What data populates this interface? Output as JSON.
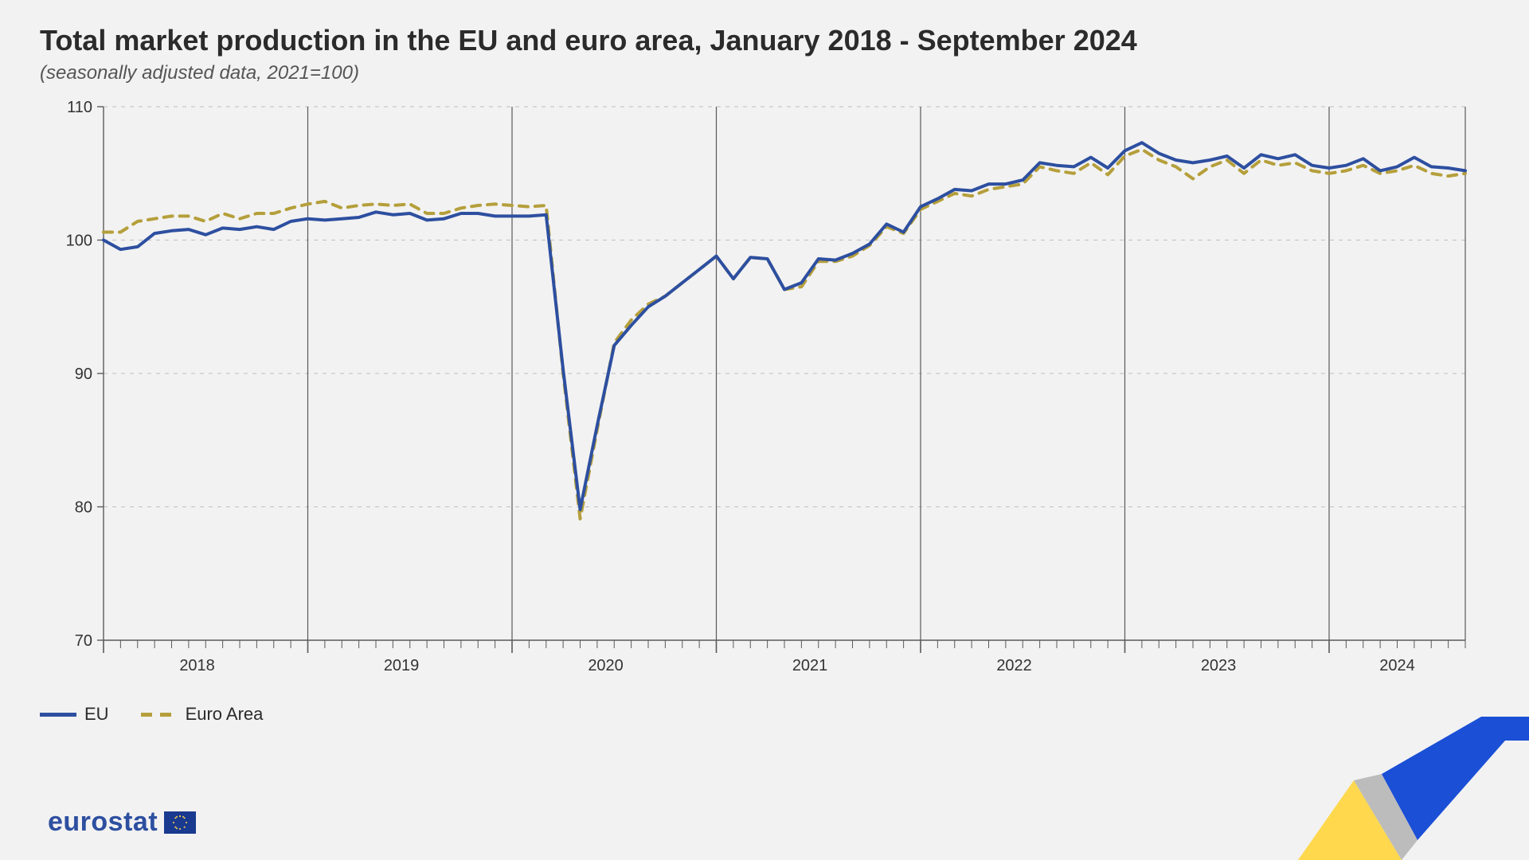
{
  "title": "Total market production in the EU and euro area, January 2018 - September 2024",
  "subtitle": "(seasonally adjusted data, 2021=100)",
  "chart": {
    "type": "line",
    "background_color": "#f2f2f2",
    "grid_color": "#bfbfbf",
    "axis_color": "#5a5a5a",
    "title_fontsize": 36,
    "subtitle_fontsize": 24,
    "label_fontsize": 22,
    "tick_fontsize": 20,
    "line_width": 4,
    "ylim": [
      70,
      110
    ],
    "ytick_step": 10,
    "yticks": [
      70,
      80,
      90,
      100,
      110
    ],
    "x_years": [
      2018,
      2019,
      2020,
      2021,
      2022,
      2023,
      2024
    ],
    "x_start": "2018-01",
    "x_end": "2024-09",
    "n_points": 81,
    "minor_ticks_per_year": 12,
    "series": {
      "eu": {
        "label": "EU",
        "color": "#2d4fa0",
        "style": "solid",
        "dash": "",
        "values": [
          100.0,
          99.3,
          99.5,
          100.5,
          100.7,
          100.8,
          100.4,
          100.9,
          100.8,
          101.0,
          100.8,
          101.4,
          101.6,
          101.5,
          101.6,
          101.7,
          102.1,
          101.9,
          102.0,
          101.5,
          101.6,
          102.0,
          102.0,
          101.8,
          101.8,
          101.8,
          101.9,
          90.3,
          79.8,
          86.1,
          92.1,
          93.6,
          95.0,
          95.8,
          96.8,
          97.8,
          98.8,
          97.1,
          98.7,
          98.6,
          96.3,
          96.8,
          98.6,
          98.5,
          99.0,
          99.7,
          101.2,
          100.6,
          102.5,
          103.1,
          103.8,
          103.7,
          104.2,
          104.2,
          104.5,
          105.8,
          105.6,
          105.5,
          106.2,
          105.4,
          106.7,
          107.3,
          106.5,
          106.0,
          105.8,
          106.0,
          106.3,
          105.4,
          106.4,
          106.1,
          106.4,
          105.6,
          105.4,
          105.6,
          106.1,
          105.2,
          105.5,
          106.2,
          105.5,
          105.4,
          105.2
        ]
      },
      "euro_area": {
        "label": "Euro Area",
        "color": "#b59f3b",
        "style": "dashed",
        "dash": "11 9",
        "values": [
          100.6,
          100.6,
          101.4,
          101.6,
          101.8,
          101.8,
          101.4,
          102.0,
          101.6,
          102.0,
          102.0,
          102.4,
          102.7,
          102.9,
          102.4,
          102.6,
          102.7,
          102.6,
          102.7,
          102.0,
          102.0,
          102.4,
          102.6,
          102.7,
          102.6,
          102.5,
          102.6,
          90.0,
          79.1,
          85.8,
          92.3,
          94.0,
          95.2,
          95.8,
          96.8,
          97.8,
          98.8,
          97.1,
          98.7,
          98.6,
          96.3,
          96.5,
          98.4,
          98.4,
          98.8,
          99.6,
          101.0,
          100.5,
          102.3,
          102.9,
          103.5,
          103.3,
          103.8,
          104.0,
          104.2,
          105.5,
          105.2,
          105.0,
          105.8,
          104.9,
          106.3,
          106.8,
          106.0,
          105.5,
          104.6,
          105.5,
          106.0,
          105.0,
          106.0,
          105.6,
          105.8,
          105.2,
          105.0,
          105.2,
          105.6,
          105.0,
          105.2,
          105.6,
          105.0,
          104.8,
          105.0
        ]
      }
    }
  },
  "legend": {
    "eu": "EU",
    "euro_area": "Euro Area"
  },
  "branding": {
    "name": "eurostat",
    "flag_bg": "#1a3a8f",
    "flag_stars": "#ffd84d",
    "swoosh_yellow": "#ffd84d",
    "swoosh_grey": "#bcbcbc",
    "swoosh_blue": "#1a4fd6"
  }
}
